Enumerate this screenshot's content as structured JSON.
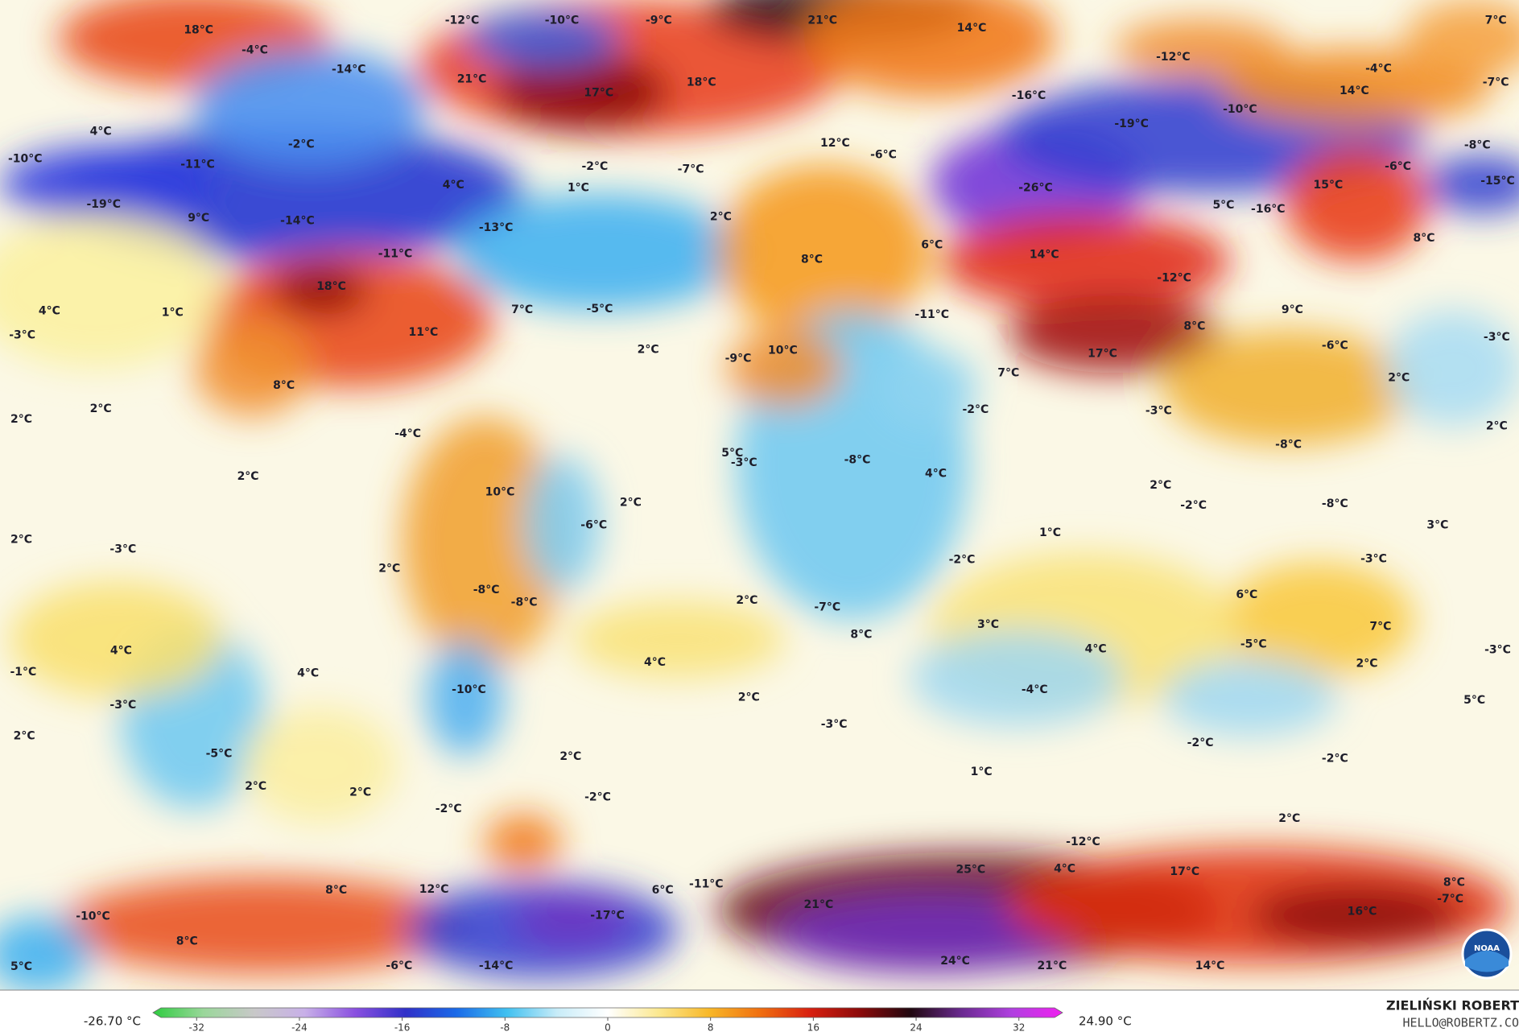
{
  "map": {
    "labels": [
      "18°C",
      "-4°C",
      "-12°C",
      "-10°C",
      "-9°C",
      "21°C",
      "14°C",
      "7°C",
      "-14°C",
      "21°C",
      "17°C",
      "18°C",
      "-12°C",
      "-4°C",
      "-7°C",
      "14°C",
      "-16°C",
      "-10°C",
      "-19°C",
      "4°C",
      "-2°C",
      "12°C",
      "-6°C",
      "-8°C",
      "-10°C",
      "-11°C",
      "4°C",
      "-2°C",
      "-7°C",
      "1°C",
      "-6°C",
      "15°C",
      "-15°C",
      "-26°C",
      "-19°C",
      "9°C",
      "-14°C",
      "-13°C",
      "2°C",
      "5°C",
      "-16°C",
      "-11°C",
      "6°C",
      "14°C",
      "8°C",
      "8°C",
      "-12°C",
      "4°C",
      "1°C",
      "18°C",
      "7°C",
      "-5°C",
      "-11°C",
      "9°C",
      "-3°C",
      "11°C",
      "8°C",
      "-3°C",
      "2°C",
      "10°C",
      "-9°C",
      "17°C",
      "-6°C",
      "7°C",
      "2°C",
      "8°C",
      "2°C",
      "-2°C",
      "-3°C",
      "2°C",
      "-4°C",
      "2°C",
      "-8°C",
      "-8°C",
      "5°C",
      "-3°C",
      "4°C",
      "2°C",
      "2°C",
      "10°C",
      "2°C",
      "-2°C",
      "-8°C",
      "-6°C",
      "1°C",
      "3°C",
      "2°C",
      "-3°C",
      "-2°C",
      "-3°C",
      "2°C",
      "-8°C",
      "-8°C",
      "2°C",
      "6°C",
      "3°C",
      "7°C",
      "-7°C",
      "8°C",
      "-5°C",
      "4°C",
      "-3°C",
      "4°C",
      "4°C",
      "2°C",
      "-1°C",
      "4°C",
      "-10°C",
      "-4°C",
      "2°C",
      "5°C",
      "-3°C",
      "-3°C",
      "2°C",
      "-5°C",
      "2°C",
      "-2°C",
      "-2°C",
      "2°C",
      "2°C",
      "1°C",
      "-2°C",
      "-2°C",
      "2°C",
      "-12°C",
      "25°C",
      "4°C",
      "17°C",
      "8°C",
      "12°C",
      "6°C",
      "-11°C",
      "8°C",
      "-7°C",
      "21°C",
      "16°C",
      "-10°C",
      "-17°C",
      "8°C",
      "5°C",
      "-6°C",
      "-14°C",
      "24°C",
      "21°C",
      "14°C"
    ],
    "logo": "NOAA"
  },
  "colorbar": {
    "min_label": "-26.70 °C",
    "max_label": "24.90 °C",
    "xlim": [
      -35.4,
      35.4
    ],
    "xticks": [
      -32,
      -24,
      -16,
      -8,
      0,
      8,
      16,
      24,
      32
    ],
    "colors": [
      "#2ecc40",
      "#9ad79a",
      "#c8c8c8",
      "#c8b0e8",
      "#8a50e0",
      "#3030c8",
      "#1a6ae8",
      "#40c0f0",
      "#c8ecf8",
      "#ffffff",
      "#fbe890",
      "#f8b828",
      "#f07010",
      "#d82010",
      "#8a0a0a",
      "#200810",
      "#6a2a90",
      "#b040e0",
      "#f020f0"
    ]
  },
  "credits": {
    "author": "ZIELIŃSKI ROBERT",
    "email": "HELLO@ROBERTZ.CO"
  }
}
